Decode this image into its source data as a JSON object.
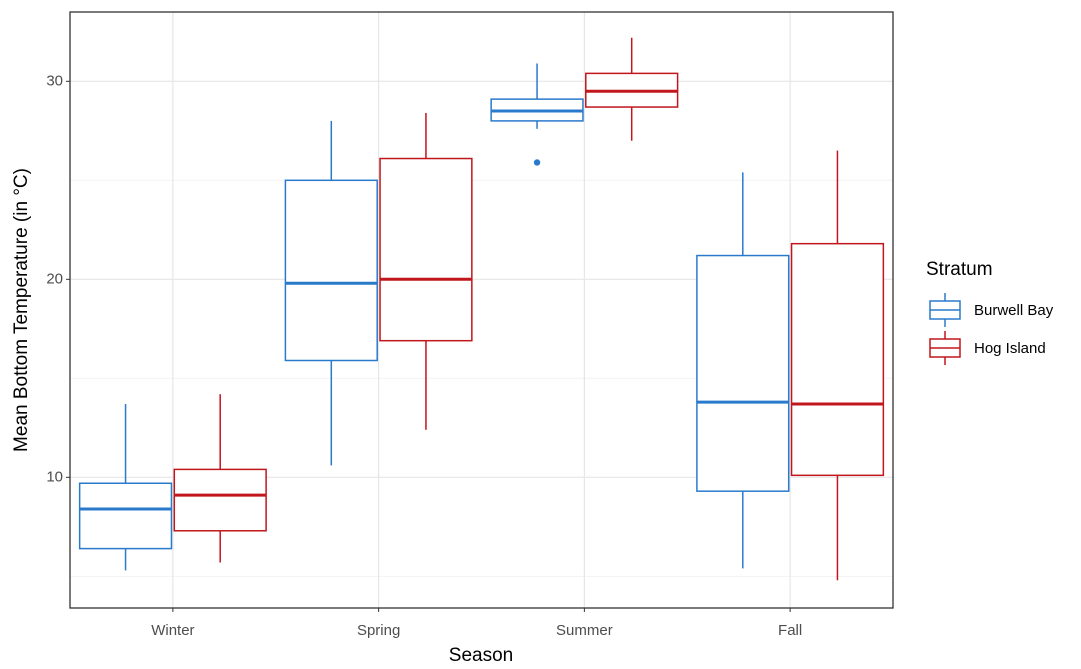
{
  "chart_data": {
    "type": "box",
    "x_label": "Season",
    "y_label": "Mean Bottom Temperature (in °C)",
    "categories": [
      "Winter",
      "Spring",
      "Summer",
      "Fall"
    ],
    "ylim": [
      3.4,
      33.5
    ],
    "yticks": [
      10,
      20,
      30
    ],
    "y_minor_ticks": [
      5,
      15,
      25
    ],
    "grid": true,
    "legend_title": "Stratum",
    "legend_position": "right",
    "series": [
      {
        "name": "Burwell Bay",
        "color": "#2a7acb",
        "boxes": [
          {
            "min": 5.3,
            "q1": 6.4,
            "median": 8.4,
            "q3": 9.7,
            "max": 13.7
          },
          {
            "min": 10.6,
            "q1": 15.9,
            "median": 19.8,
            "q3": 25.0,
            "max": 28.0
          },
          {
            "min": 27.6,
            "q1": 28.0,
            "median": 28.5,
            "q3": 29.1,
            "max": 30.9,
            "outliers": [
              25.9
            ]
          },
          {
            "min": 5.4,
            "q1": 9.3,
            "median": 13.8,
            "q3": 21.2,
            "max": 25.4
          }
        ]
      },
      {
        "name": "Hog Island",
        "color": "#c0161c",
        "boxes": [
          {
            "min": 5.7,
            "q1": 7.3,
            "median": 9.1,
            "q3": 10.4,
            "max": 14.2
          },
          {
            "min": 12.4,
            "q1": 16.9,
            "median": 20.0,
            "q3": 26.1,
            "max": 28.4
          },
          {
            "min": 27.0,
            "q1": 28.7,
            "median": 29.5,
            "q3": 30.4,
            "max": 32.2
          },
          {
            "min": 4.8,
            "q1": 10.1,
            "median": 13.7,
            "q3": 21.8,
            "max": 26.5
          }
        ]
      }
    ]
  }
}
